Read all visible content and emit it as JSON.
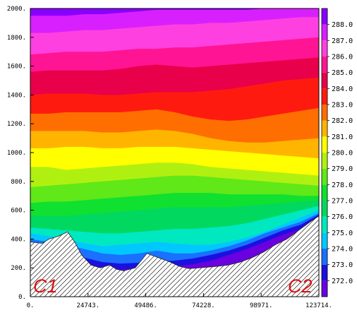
{
  "chart_data": {
    "type": "contour",
    "x_ticks": [
      "0.",
      "24743.",
      "49486.",
      "74228.",
      "98971.",
      "123714."
    ],
    "x_values": [
      0,
      24743,
      49486,
      74228,
      98971,
      123714
    ],
    "y_ticks": [
      "0.",
      "200.",
      "400.",
      "600.",
      "800.",
      "1000.",
      "1200.",
      "1400.",
      "1600.",
      "1800.",
      "2000."
    ],
    "y_values": [
      0,
      200,
      400,
      600,
      800,
      1000,
      1200,
      1400,
      1600,
      1800,
      2000
    ],
    "xlim": [
      0,
      123714
    ],
    "ylim": [
      0,
      2000
    ],
    "section_labels": {
      "left": "C1",
      "right": "C2"
    },
    "colorbar": {
      "labels": [
        "272.0",
        "273.0",
        "274.0",
        "275.0",
        "276.0",
        "277.0",
        "278.0",
        "279.0",
        "280.0",
        "281.0",
        "282.0",
        "283.0",
        "284.0",
        "285.0",
        "286.0",
        "287.0",
        "288.0"
      ],
      "colors": [
        "#6a00e0",
        "#1a10e0",
        "#1a70ff",
        "#00c8ff",
        "#00e8c0",
        "#00d860",
        "#10e030",
        "#60e818",
        "#b0f010",
        "#ffff00",
        "#ffb400",
        "#ff6e00",
        "#ff1a10",
        "#e8004a",
        "#ff1493",
        "#ff40e0",
        "#d820ff",
        "#8800ff"
      ]
    },
    "contour_levels": [
      272,
      273,
      274,
      275,
      276,
      277,
      278,
      279,
      280,
      281,
      282,
      283,
      284,
      285,
      286,
      287,
      288
    ],
    "terrain": {
      "x": [
        0,
        5000,
        8000,
        12000,
        16000,
        19000,
        22000,
        26000,
        30000,
        34000,
        37000,
        40000,
        45000,
        50000,
        55000,
        60000,
        64000,
        68000,
        72000,
        76000,
        80000,
        85000,
        90000,
        95000,
        100000,
        105000,
        110000,
        115000,
        120000,
        123714
      ],
      "y": [
        380,
        370,
        400,
        420,
        450,
        380,
        290,
        220,
        200,
        220,
        190,
        180,
        200,
        300,
        270,
        240,
        210,
        195,
        200,
        205,
        210,
        220,
        240,
        270,
        310,
        360,
        400,
        460,
        520,
        560
      ]
    },
    "isotherm_heights": [
      [
        300,
        280,
        260,
        230,
        200,
        190,
        195,
        205,
        210,
        225,
        250,
        290,
        330,
        380,
        430,
        470,
        560
      ],
      [
        340,
        320,
        300,
        270,
        240,
        230,
        235,
        245,
        250,
        265,
        290,
        320,
        360,
        410,
        460,
        500,
        570
      ],
      [
        400,
        380,
        360,
        330,
        300,
        290,
        300,
        320,
        300,
        300,
        320,
        350,
        390,
        440,
        480,
        520,
        580
      ],
      [
        440,
        420,
        400,
        370,
        350,
        360,
        370,
        380,
        370,
        360,
        360,
        380,
        410,
        450,
        500,
        550,
        600
      ],
      [
        480,
        470,
        460,
        450,
        440,
        440,
        450,
        460,
        470,
        470,
        480,
        490,
        510,
        540,
        570,
        600,
        630
      ],
      [
        560,
        560,
        560,
        570,
        580,
        590,
        600,
        610,
        620,
        620,
        620,
        620,
        630,
        640,
        650,
        660,
        670
      ],
      [
        650,
        660,
        660,
        670,
        680,
        690,
        700,
        710,
        720,
        720,
        720,
        710,
        710,
        710,
        710,
        700,
        700
      ],
      [
        760,
        770,
        780,
        790,
        800,
        810,
        820,
        830,
        840,
        840,
        830,
        820,
        810,
        800,
        790,
        780,
        770
      ],
      [
        900,
        900,
        880,
        890,
        900,
        910,
        920,
        930,
        930,
        920,
        900,
        890,
        880,
        870,
        860,
        850,
        840
      ],
      [
        1030,
        1030,
        1040,
        1040,
        1030,
        1030,
        1040,
        1040,
        1040,
        1030,
        1020,
        1010,
        1000,
        990,
        980,
        970,
        960
      ],
      [
        1150,
        1150,
        1150,
        1150,
        1140,
        1140,
        1150,
        1160,
        1150,
        1130,
        1100,
        1080,
        1070,
        1070,
        1080,
        1090,
        1100
      ],
      [
        1270,
        1270,
        1280,
        1280,
        1280,
        1280,
        1290,
        1300,
        1280,
        1250,
        1230,
        1220,
        1230,
        1250,
        1270,
        1290,
        1310
      ],
      [
        1400,
        1410,
        1410,
        1410,
        1400,
        1400,
        1410,
        1420,
        1420,
        1420,
        1430,
        1440,
        1460,
        1480,
        1500,
        1510,
        1520
      ],
      [
        1560,
        1570,
        1570,
        1570,
        1570,
        1580,
        1600,
        1610,
        1600,
        1590,
        1600,
        1610,
        1620,
        1630,
        1640,
        1650,
        1660
      ],
      [
        1680,
        1690,
        1700,
        1700,
        1700,
        1710,
        1720,
        1720,
        1730,
        1730,
        1740,
        1750,
        1760,
        1770,
        1780,
        1790,
        1800
      ],
      [
        1830,
        1830,
        1840,
        1850,
        1850,
        1860,
        1870,
        1880,
        1890,
        1890,
        1900,
        1900,
        1910,
        1920,
        1930,
        1940,
        1940
      ],
      [
        1950,
        1950,
        1950,
        1960,
        1960,
        1970,
        1980,
        1990,
        1990,
        1990,
        1990,
        1990,
        1990,
        2000,
        2000,
        2000,
        2000
      ]
    ]
  }
}
